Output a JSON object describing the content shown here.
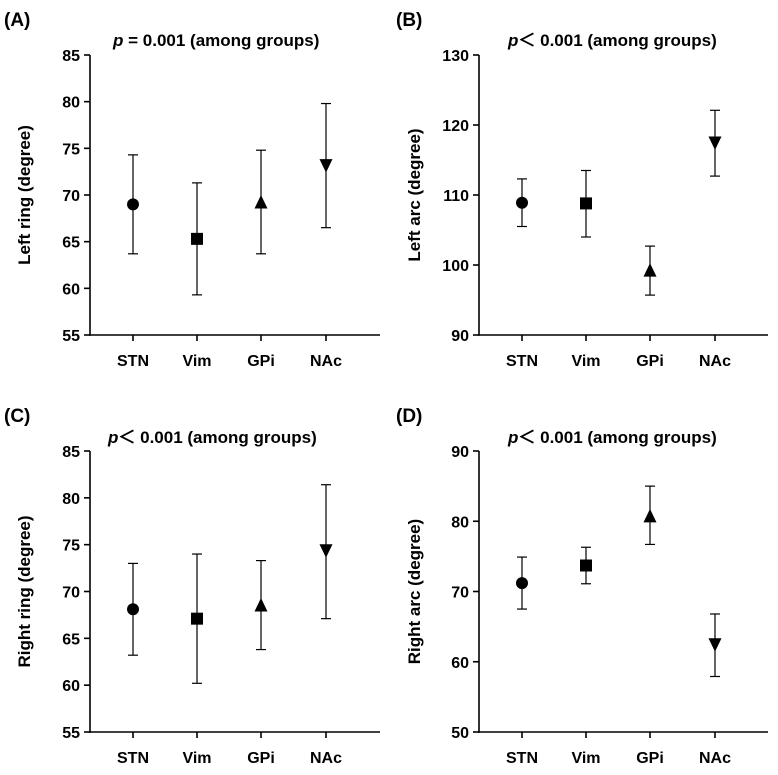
{
  "chart_data": [
    {
      "panel_label": "(A)",
      "type": "scatter",
      "title": {
        "italic": "p",
        "rest": " = 0.001 (among groups)"
      },
      "ylabel": "Left ring (degree)",
      "ylim": [
        55,
        85
      ],
      "yticks": [
        55,
        60,
        65,
        70,
        75,
        80,
        85
      ],
      "categories": [
        "STN",
        "Vim",
        "GPi",
        "NAc"
      ],
      "markers": [
        "circle",
        "square",
        "triangle-up",
        "triangle-down"
      ],
      "means": [
        69.0,
        65.3,
        69.2,
        73.2
      ],
      "lower": [
        63.7,
        59.3,
        63.7,
        66.5
      ],
      "upper": [
        74.3,
        71.3,
        74.8,
        79.8
      ]
    },
    {
      "panel_label": "(B)",
      "type": "scatter",
      "title": {
        "italic": "p",
        "rest": "＜ 0.001 (among groups)"
      },
      "ylabel": "Left arc (degree)",
      "ylim": [
        90,
        130
      ],
      "yticks": [
        90,
        100,
        110,
        120,
        130
      ],
      "categories": [
        "STN",
        "Vim",
        "GPi",
        "NAc"
      ],
      "markers": [
        "circle",
        "square",
        "triangle-up",
        "triangle-down"
      ],
      "means": [
        108.9,
        108.8,
        99.2,
        117.5
      ],
      "lower": [
        105.5,
        104.0,
        95.7,
        112.7
      ],
      "upper": [
        112.3,
        113.5,
        102.7,
        122.1
      ]
    },
    {
      "panel_label": "(C)",
      "type": "scatter",
      "title": {
        "italic": "p",
        "rest": "＜ 0.001 (among groups)"
      },
      "ylabel": "Right ring (degree)",
      "ylim": [
        55,
        85
      ],
      "yticks": [
        55,
        60,
        65,
        70,
        75,
        80,
        85
      ],
      "categories": [
        "STN",
        "Vim",
        "GPi",
        "NAc"
      ],
      "markers": [
        "circle",
        "square",
        "triangle-up",
        "triangle-down"
      ],
      "means": [
        68.1,
        67.1,
        68.5,
        74.4
      ],
      "lower": [
        63.2,
        60.2,
        63.8,
        67.1
      ],
      "upper": [
        73.0,
        74.0,
        73.3,
        81.4
      ]
    },
    {
      "panel_label": "(D)",
      "type": "scatter",
      "title": {
        "italic": "p",
        "rest": "＜ 0.001 (among groups)"
      },
      "ylabel": "Right arc (degree)",
      "ylim": [
        50,
        90
      ],
      "yticks": [
        50,
        60,
        70,
        80,
        90
      ],
      "categories": [
        "STN",
        "Vim",
        "GPi",
        "NAc"
      ],
      "markers": [
        "circle",
        "square",
        "triangle-up",
        "triangle-down"
      ],
      "means": [
        71.2,
        73.7,
        80.7,
        62.5
      ],
      "lower": [
        67.5,
        71.1,
        76.7,
        57.9
      ],
      "upper": [
        74.9,
        76.3,
        85.0,
        66.8
      ]
    }
  ]
}
